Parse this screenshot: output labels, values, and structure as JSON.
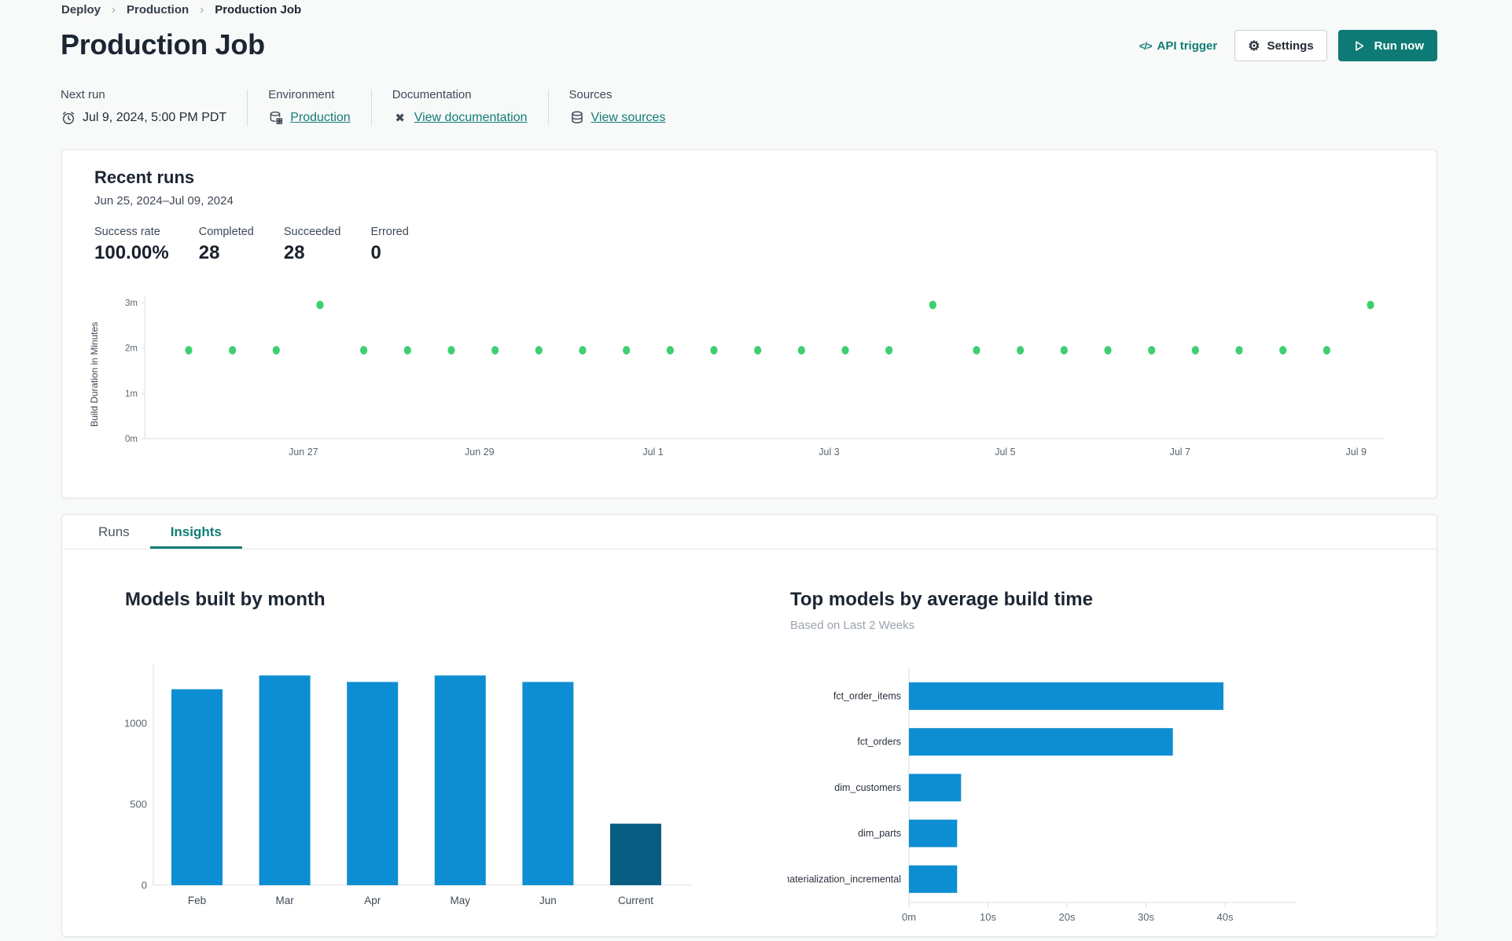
{
  "breadcrumb": {
    "items": [
      "Deploy",
      "Production",
      "Production Job"
    ],
    "separator": "›"
  },
  "header": {
    "title": "Production Job",
    "api_trigger": {
      "icon": "</>",
      "label": "API trigger"
    },
    "settings_label": "Settings",
    "run_now_label": "Run now"
  },
  "info": {
    "columns": [
      {
        "label": "Next run",
        "value": "Jul 9, 2024, 5:00 PM PDT",
        "icon": "alarm-clock"
      },
      {
        "label": "Environment",
        "value": "Production",
        "icon": "environment"
      },
      {
        "label": "Documentation",
        "value": "View documentation",
        "icon": "dbt-docs"
      },
      {
        "label": "Sources",
        "value": "View sources",
        "icon": "database"
      }
    ]
  },
  "recent_runs": {
    "title": "Recent runs",
    "date_range": "Jun 25, 2024–Jul 09, 2024",
    "stats": [
      {
        "label": "Success rate",
        "value": "100.00%"
      },
      {
        "label": "Completed",
        "value": "28"
      },
      {
        "label": "Succeeded",
        "value": "28"
      },
      {
        "label": "Errored",
        "value": "0"
      }
    ]
  },
  "tabs": [
    {
      "label": "Runs",
      "active": false
    },
    {
      "label": "Insights",
      "active": true
    }
  ],
  "colors": {
    "teal_primary": "#0d7a75",
    "teal_link": "#117d76",
    "bar_blue": "#0e8ed2",
    "bar_dark_blue": "#0a5d82",
    "run_dot_green": "#3ecf71",
    "axis_gray": "#d8dcdf"
  },
  "chart_data": [
    {
      "id": "build-durations",
      "type": "scatter",
      "ylabel": "Build Duration in Minutes",
      "ylim": [
        0,
        3.26
      ],
      "yticks": [
        {
          "v": 0,
          "label": "0m"
        },
        {
          "v": 1,
          "label": "1m"
        },
        {
          "v": 2,
          "label": "2m"
        },
        {
          "v": 3,
          "label": "3m"
        }
      ],
      "xticks": [
        {
          "f": 0.128,
          "label": "Jun 27"
        },
        {
          "f": 0.27,
          "label": "Jun 29"
        },
        {
          "f": 0.41,
          "label": "Jul 1"
        },
        {
          "f": 0.552,
          "label": "Jul 3"
        },
        {
          "f": 0.694,
          "label": "Jul 5"
        },
        {
          "f": 0.835,
          "label": "Jul 7"
        },
        {
          "f": 0.977,
          "label": "Jul 9"
        }
      ],
      "x_start_fraction": 0.0355,
      "x_step_fraction": 0.0353,
      "point_color": "#3ecf71",
      "points_minutes": [
        1.95,
        1.95,
        1.95,
        2.95,
        1.95,
        1.95,
        1.95,
        1.95,
        1.95,
        1.95,
        1.95,
        1.95,
        1.95,
        1.95,
        1.95,
        1.95,
        1.95,
        2.95,
        1.95,
        1.95,
        1.95,
        1.95,
        1.95,
        1.95,
        1.95,
        1.95,
        1.95,
        2.95
      ]
    },
    {
      "id": "models-by-month",
      "type": "bar",
      "title": "Models built by month",
      "categories": [
        "Feb",
        "Mar",
        "Apr",
        "May",
        "Jun",
        "Current"
      ],
      "values": [
        1210,
        1295,
        1255,
        1295,
        1255,
        380
      ],
      "bar_colors": [
        "#0e8ed2",
        "#0e8ed2",
        "#0e8ed2",
        "#0e8ed2",
        "#0e8ed2",
        "#0a5d82"
      ],
      "yticks": [
        0,
        500,
        1000
      ],
      "ylim": [
        0,
        1430
      ]
    },
    {
      "id": "top-models",
      "type": "bar-horizontal",
      "title": "Top models by average build time",
      "subtitle": "Based on Last 2 Weeks",
      "categories": [
        "fct_order_items",
        "fct_orders",
        "dim_customers",
        "dim_parts",
        "materialization_incremental"
      ],
      "values_seconds": [
        39.8,
        33.4,
        6.6,
        6.1,
        6.1
      ],
      "xlim": [
        0,
        48
      ],
      "xticks": [
        {
          "v": 0,
          "label": "0m"
        },
        {
          "v": 10,
          "label": "10s"
        },
        {
          "v": 20,
          "label": "20s"
        },
        {
          "v": 30,
          "label": "30s"
        },
        {
          "v": 40,
          "label": "40s"
        }
      ],
      "bar_color": "#0e8ed2"
    }
  ]
}
